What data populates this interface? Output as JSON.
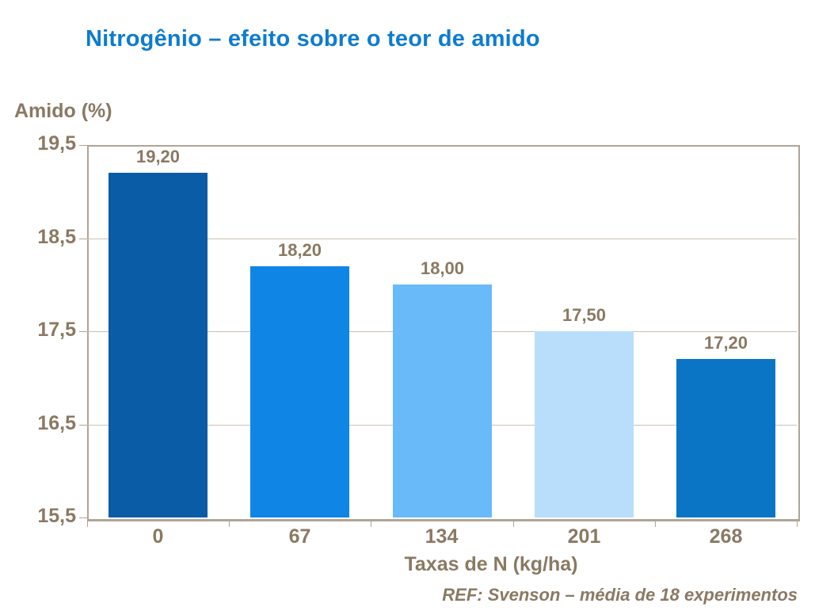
{
  "title": "Nitrogênio – efeito sobre o teor de amido",
  "colors": {
    "title": "#0e7cce",
    "text": "#8a7963",
    "plot_border": "#b0a497",
    "gridline": "#cbc1b4"
  },
  "chart_data": {
    "type": "bar",
    "title": "Nitrogênio – efeito sobre o teor de amido",
    "ylabel": "Amido (%)",
    "xlabel": "Taxas de N (kg/ha)",
    "footnote": "REF: Svenson – média de 18 experimentos",
    "categories": [
      "0",
      "67",
      "134",
      "201",
      "268"
    ],
    "values": [
      19.2,
      18.2,
      18.0,
      17.5,
      17.2
    ],
    "value_labels": [
      "19,20",
      "18,20",
      "18,00",
      "17,50",
      "17,20"
    ],
    "bar_colors": [
      "#0b5ca6",
      "#0f85e6",
      "#68baf9",
      "#b9defb",
      "#0a75c5"
    ],
    "ylim": [
      15.5,
      19.5
    ],
    "yticks": [
      19.5,
      18.5,
      17.5,
      16.5,
      15.5
    ],
    "ytick_labels": [
      "19,5",
      "18,5",
      "17,5",
      "16,5",
      "15,5"
    ],
    "grid": true,
    "legend": false
  }
}
